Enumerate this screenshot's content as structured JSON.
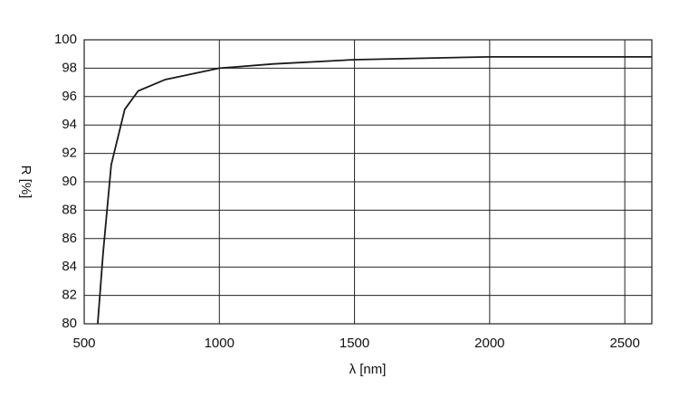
{
  "chart_data": {
    "type": "line",
    "x_label": "λ [nm]",
    "y_label": "R [%]",
    "x": [
      550,
      570,
      600,
      650,
      700,
      800,
      1000,
      1200,
      1500,
      2000,
      2600
    ],
    "series": [
      {
        "color": "#1a1a1a",
        "values": [
          80,
          85,
          91.2,
          95.1,
          96.4,
          97.2,
          98.0,
          98.3,
          98.6,
          98.8,
          98.8
        ]
      }
    ],
    "xlim": [
      500,
      2600
    ],
    "xticks": [
      500,
      1000,
      1500,
      2000,
      2500
    ],
    "ylim": [
      80,
      100
    ],
    "yticks": [
      80,
      82,
      84,
      86,
      88,
      90,
      92,
      94,
      96,
      98,
      100
    ],
    "grid": true
  }
}
